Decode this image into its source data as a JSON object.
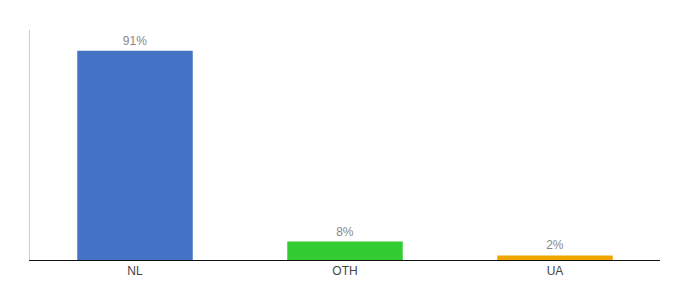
{
  "chart_data": {
    "type": "bar",
    "categories": [
      "NL",
      "OTH",
      "UA"
    ],
    "values": [
      91,
      8,
      2
    ],
    "value_labels": [
      "91%",
      "8%",
      "2%"
    ],
    "data_labels": true,
    "colors": [
      "#4472c4",
      "#33cc33",
      "#f0a500"
    ],
    "ylim": [
      0,
      100
    ],
    "grid": false,
    "tick_labels": "x"
  }
}
